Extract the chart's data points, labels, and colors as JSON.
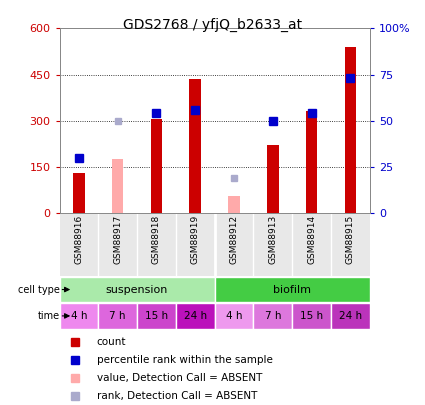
{
  "title": "GDS2768 / yfjQ_b2633_at",
  "samples": [
    "GSM88916",
    "GSM88917",
    "GSM88918",
    "GSM88919",
    "GSM88912",
    "GSM88913",
    "GSM88914",
    "GSM88915"
  ],
  "count_values": [
    130,
    null,
    305,
    435,
    null,
    220,
    330,
    540
  ],
  "count_absent": [
    null,
    175,
    null,
    null,
    55,
    null,
    null,
    null
  ],
  "rank_vals_pct": [
    30,
    null,
    54,
    56,
    null,
    50,
    54,
    73
  ],
  "rank_absent_pct": [
    null,
    50,
    null,
    null,
    19,
    null,
    null,
    null
  ],
  "count_color": "#cc0000",
  "count_absent_color": "#ffaaaa",
  "rank_color": "#0000cc",
  "rank_absent_color": "#aaaacc",
  "cell_types": [
    {
      "label": "suspension",
      "span": [
        0,
        4
      ],
      "color": "#aaeaaa"
    },
    {
      "label": "biofilm",
      "span": [
        4,
        8
      ],
      "color": "#44cc44"
    }
  ],
  "times": [
    "4 h",
    "7 h",
    "15 h",
    "24 h",
    "4 h",
    "7 h",
    "15 h",
    "24 h"
  ],
  "time_bg": [
    "#ee88ee",
    "#dd66dd",
    "#cc44cc",
    "#bb11bb",
    "#ee99ee",
    "#dd77dd",
    "#cc55cc",
    "#bb33bb"
  ],
  "ylim_left": [
    0,
    600
  ],
  "ylim_right": [
    0,
    100
  ],
  "yticks_left": [
    0,
    150,
    300,
    450,
    600
  ],
  "yticks_right": [
    0,
    25,
    50,
    75,
    100
  ],
  "ytick_right_labels": [
    "0",
    "25",
    "50",
    "75",
    "100%"
  ],
  "ylabel_left_color": "#cc0000",
  "ylabel_right_color": "#0000cc",
  "legend_items": [
    {
      "label": "count",
      "color": "#cc0000"
    },
    {
      "label": "percentile rank within the sample",
      "color": "#0000cc"
    },
    {
      "label": "value, Detection Call = ABSENT",
      "color": "#ffaaaa"
    },
    {
      "label": "rank, Detection Call = ABSENT",
      "color": "#aaaacc"
    }
  ],
  "bar_width": 0.3,
  "bg_color": "#e8e8e8"
}
